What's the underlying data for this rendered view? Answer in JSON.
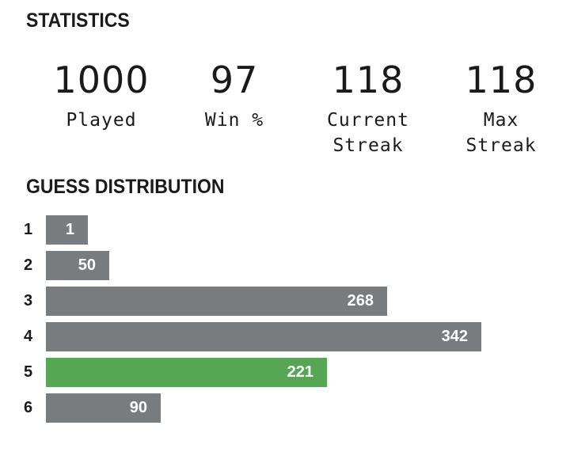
{
  "statistics": {
    "title": "STATISTICS",
    "items": [
      {
        "value": "1000",
        "label": "Played"
      },
      {
        "value": "97",
        "label": "Win %"
      },
      {
        "value": "118",
        "label": "Current\nStreak"
      },
      {
        "value": "118",
        "label": "Max\nStreak"
      }
    ]
  },
  "distribution": {
    "title": "GUESS DISTRIBUTION",
    "rows": [
      {
        "guess": "1",
        "count": 1
      },
      {
        "guess": "2",
        "count": 50
      },
      {
        "guess": "3",
        "count": 268
      },
      {
        "guess": "4",
        "count": 342
      },
      {
        "guess": "5",
        "count": 221,
        "highlighted": true
      },
      {
        "guess": "6",
        "count": 90
      }
    ]
  },
  "colors": {
    "bar_default": "#787c7e",
    "bar_highlight": "#57a653",
    "text": "#1a1a1b",
    "bar_text": "#ffffff"
  }
}
